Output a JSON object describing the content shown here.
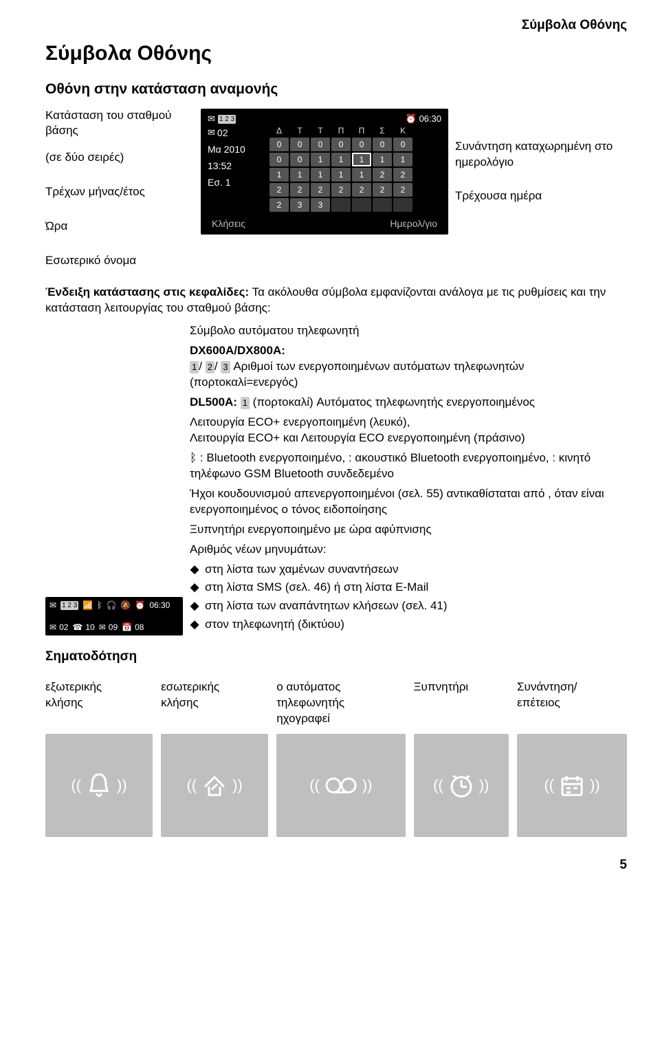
{
  "header": {
    "top_right": "Σύμβολα Οθόνης"
  },
  "h1": "Σύμβολα Οθόνης",
  "h2": "Οθόνη στην κατάσταση αναμονής",
  "h3": "Σηματοδότηση",
  "left_callouts": {
    "l1": "Κατάσταση  του  σταθμού βάσης",
    "l2": "(σε δύο σειρές)",
    "l3": "Τρέχων μήνας/έτος",
    "l4": "Ώρα",
    "l5": "Εσωτερικό όνομα"
  },
  "right_callouts": {
    "r1": "Συνάντηση καταχωρημένη στο ημερολόγιο",
    "r2": "Τρέχουσα ημέρα"
  },
  "phone": {
    "status_badge": "1 2 3",
    "alarm_time": "06:30",
    "line2_badge": "02",
    "month_year": "Μα 2010",
    "time": "13:52",
    "name": "Εσ. 1",
    "days": [
      "Δ",
      "Τ",
      "Τ",
      "Π",
      "Π",
      "Σ",
      "Κ"
    ],
    "cal_rows": [
      [
        "0",
        "0",
        "0",
        "0",
        "0",
        "0",
        "0"
      ],
      [
        "0",
        "0",
        "1",
        "1",
        "1",
        "1",
        "1"
      ],
      [
        "1",
        "1",
        "1",
        "1",
        "1",
        "2",
        "2"
      ],
      [
        "2",
        "2",
        "2",
        "2",
        "2",
        "2",
        "2"
      ],
      [
        "2",
        "3",
        "3",
        "",
        "",
        "",
        ""
      ]
    ],
    "cal_hl_row": 1,
    "cal_hl_col": 4,
    "soft_left": "Κλήσεις",
    "soft_right": "Ημερολ/γιο"
  },
  "body_para_lead": "Ένδειξη κατάστασης στις κεφαλίδες:",
  "body_para_rest": " Τα ακόλουθα σύμβολα εμφανίζονται ανάλογα με τις ρυθμίσεις και την κατάσταση λειτουργίας του σταθμού βάσης:",
  "features": {
    "f1": "Σύμβολο αυτόματου τηλεφωνητή",
    "f1b_lead": "DX600A/DX800A:",
    "f1b_rest": " Αριθμοί των ενεργοποιημένων αυτόματων τηλεφωνητών (πορτοκαλί=ενεργός)",
    "f1b_badges": [
      "1",
      "2",
      "3"
    ],
    "f1c_lead": "DL500A:",
    "f1c_rest": " (πορτοκαλί) Αυτόματος τηλεφωνητής ενεργοποιημένος",
    "f1c_badge": "1",
    "f2a": "Λειτουργία ECO+ ενεργοποιημένη (λευκό),",
    "f2b": "Λειτουργία ECO+ και Λειτουργία ECO ενεργοποιημένη (πράσινο)",
    "f3": " : Bluetooth ενεργοποιημένο,  : ακουστικό Bluetooth ενεργοποιημένο,  : κινητό τηλέφωνο GSM Bluetooth συνδεδεμένο",
    "f4": "Ήχοι κουδουνισμού απενεργοποιημένοι (σελ. 55) αντικαθίσταται από  , όταν είναι ενεργοποιημένος ο τόνος ειδοποίησης",
    "f5": "Ξυπνητήρι ενεργοποιημένο με ώρα αφύπνισης",
    "f6": "Αριθμός νέων μηνυμάτων:",
    "f6_items": [
      "στη λίστα των χαμένων συναντήσεων",
      "στη λίστα SMS (σελ. 46) ή στη λίστα E-Mail",
      "στη λίστα των αναπάντητων κλήσεων (σελ. 41)",
      "στον τηλεφωνητή (δικτύου)"
    ]
  },
  "mini_status": {
    "badge": "1 2 3",
    "alarm": "06:30",
    "line2_a": "02",
    "line2_b": "10",
    "line2_c": "09",
    "line2_d": "08"
  },
  "signals": {
    "c1a": "εξωτερικής",
    "c1b": "κλήσης",
    "c2a": "εσωτερικής",
    "c2b": "κλήσης",
    "c3a": "ο αυτόματος",
    "c3b": "τηλεφωνητής",
    "c3c": "ηχογραφεί",
    "c4a": "Ξυπνητήρι",
    "c5a": "Συνάντηση/",
    "c5b": "επέτειος"
  },
  "page_number": "5"
}
